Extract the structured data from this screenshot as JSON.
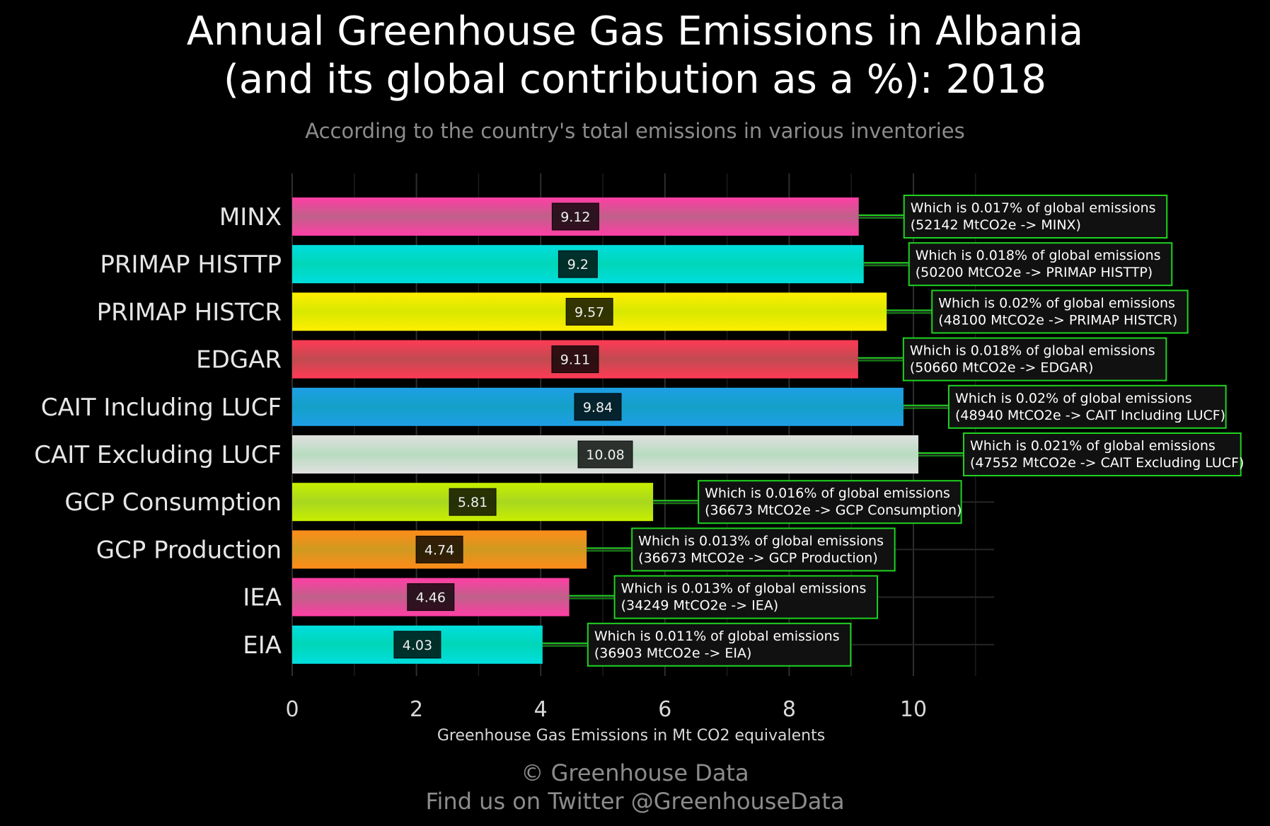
{
  "title_line1": "Annual Greenhouse Gas Emissions in Albania",
  "title_line2": "(and its global contribution as a %): 2018",
  "subtitle": "According to the country's total emissions in various inventories",
  "footer_line1": "© Greenhouse Data",
  "footer_line2": "Find us on Twitter @GreenhouseData",
  "chart_data": {
    "type": "bar",
    "orientation": "horizontal",
    "title": "Annual Greenhouse Gas Emissions in Albania (and its global contribution as a %): 2018",
    "subtitle": "According to the country's total emissions in various inventories",
    "xlabel": "Greenhouse Gas Emissions in Mt CO2 equivalents",
    "ylabel": "",
    "xlim": [
      0,
      11.3
    ],
    "xticks": [
      "0",
      "2",
      "4",
      "6",
      "8",
      "10"
    ],
    "grid": true,
    "categories": [
      "MINX",
      "PRIMAP HISTTP",
      "PRIMAP HISTCR",
      "EDGAR",
      "CAIT Including LUCF",
      "CAIT Excluding LUCF",
      "GCP Consumption",
      "GCP Production",
      "IEA",
      "EIA"
    ],
    "values": [
      9.12,
      9.2,
      9.57,
      9.11,
      9.84,
      10.08,
      5.81,
      4.74,
      4.46,
      4.03
    ],
    "value_labels": [
      "9.12",
      "9.2",
      "9.57",
      "9.11",
      "9.84",
      "10.08",
      "5.81",
      "4.74",
      "4.46",
      "4.03"
    ],
    "bar_colors": [
      [
        "#ff3ea5",
        "#c0608a"
      ],
      [
        "#00dede",
        "#00d6b8"
      ],
      [
        "#ffee00",
        "#d8e800"
      ],
      [
        "#ff3a55",
        "#c04b50"
      ],
      [
        "#1e9fe6",
        "#14a0c8"
      ],
      [
        "#e0e0e0",
        "#b8dcc0"
      ],
      [
        "#c8ee00",
        "#a8d820"
      ],
      [
        "#ff8c1a",
        "#d09a20"
      ],
      [
        "#ff3ea5",
        "#c0608a"
      ],
      [
        "#00dede",
        "#00d6b8"
      ]
    ],
    "annotations": [
      [
        "Which is 0.017% of global emissions",
        "(52142 MtCO2e -> MINX)"
      ],
      [
        "Which is 0.018% of global emissions",
        "(50200 MtCO2e -> PRIMAP HISTTP)"
      ],
      [
        "Which is 0.02% of global emissions",
        "(48100 MtCO2e -> PRIMAP HISTCR)"
      ],
      [
        "Which is 0.018% of global emissions",
        "(50660 MtCO2e -> EDGAR)"
      ],
      [
        "Which is 0.02% of global emissions",
        "(48940 MtCO2e -> CAIT Including LUCF)"
      ],
      [
        "Which is 0.021% of global emissions",
        "(47552 MtCO2e -> CAIT Excluding LUCF)"
      ],
      [
        "Which is 0.016% of global emissions",
        "(36673 MtCO2e -> GCP Consumption)"
      ],
      [
        "Which is 0.013% of global emissions",
        "(36673 MtCO2e -> GCP Production)"
      ],
      [
        "Which is 0.013% of global emissions",
        "(34249 MtCO2e -> IEA)"
      ],
      [
        "Which is 0.011% of global emissions",
        "(36903 MtCO2e -> EIA)"
      ]
    ],
    "annotation_border_color": "#1fd21f",
    "connector_color": "#1fd21f"
  }
}
